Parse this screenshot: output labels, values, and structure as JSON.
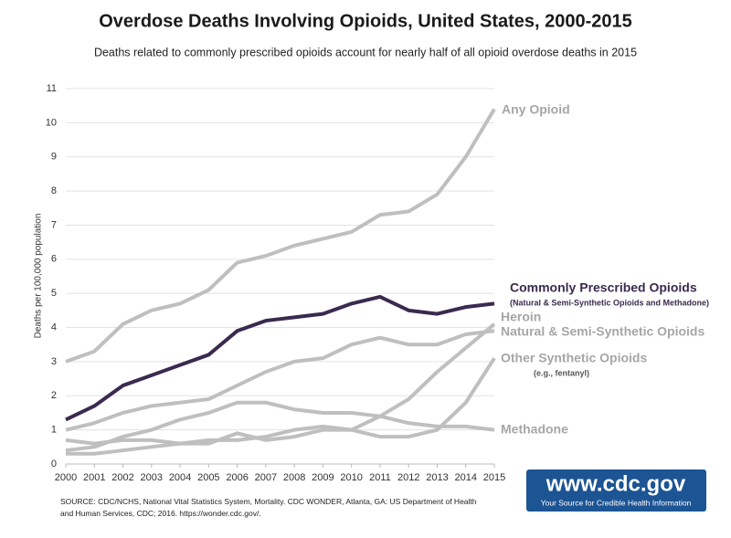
{
  "chart_data": {
    "type": "line",
    "title": "Overdose Deaths Involving Opioids, United States, 2000-2015",
    "subtitle": "Deaths related to commonly prescribed opioids account for nearly half of all opioid overdose deaths in 2015",
    "y_label": "Deaths per 100,000 population",
    "source": "SOURCE: CDC/NCHS, National Vital Statistics System, Mortality. CDC WONDER, Atlanta, GA: US Department of Health and Human Services, CDC; 2016. https://wonder.cdc.gov/.",
    "logo": {
      "title": "www.cdc.gov",
      "tagline": "Your Source for Credible Health Information"
    },
    "x": [
      2000,
      2001,
      2002,
      2003,
      2004,
      2005,
      2006,
      2007,
      2008,
      2009,
      2010,
      2011,
      2012,
      2013,
      2014,
      2015
    ],
    "xlim": [
      2000,
      2015
    ],
    "xticks": [
      2000,
      2001,
      2002,
      2003,
      2004,
      2005,
      2006,
      2007,
      2008,
      2009,
      2010,
      2011,
      2012,
      2013,
      2014,
      2015
    ],
    "ylim": [
      0,
      11
    ],
    "yticks": [
      0,
      1,
      2,
      3,
      4,
      5,
      6,
      7,
      8,
      9,
      10,
      11
    ],
    "grid": true,
    "series": [
      {
        "name": "Any Opioid",
        "color": "#bfbfbf",
        "values": [
          3.0,
          3.3,
          4.1,
          4.5,
          4.7,
          5.1,
          5.9,
          6.1,
          6.4,
          6.6,
          6.8,
          7.3,
          7.4,
          7.9,
          9.0,
          10.4
        ]
      },
      {
        "name": "Commonly Prescribed Opioids",
        "note": "(Natural & Semi-Synthetic Opioids and Methadone)",
        "color": "#3b2a4f",
        "values": [
          1.3,
          1.7,
          2.3,
          2.6,
          2.9,
          3.2,
          3.9,
          4.2,
          4.3,
          4.4,
          4.7,
          4.9,
          4.5,
          4.4,
          4.6,
          4.7
        ]
      },
      {
        "name": "Heroin",
        "color": "#bfbfbf",
        "values": [
          0.7,
          0.6,
          0.7,
          0.7,
          0.6,
          0.7,
          0.7,
          0.8,
          1.0,
          1.1,
          1.0,
          1.4,
          1.9,
          2.7,
          3.4,
          4.1
        ]
      },
      {
        "name": "Natural & Semi-Synthetic Opioids",
        "color": "#bfbfbf",
        "values": [
          1.0,
          1.2,
          1.5,
          1.7,
          1.8,
          1.9,
          2.3,
          2.7,
          3.0,
          3.1,
          3.5,
          3.7,
          3.5,
          3.5,
          3.8,
          3.9
        ]
      },
      {
        "name": "Other Synthetic Opioids",
        "note": "(e.g., fentanyl)",
        "color": "#bfbfbf",
        "values": [
          0.3,
          0.3,
          0.4,
          0.5,
          0.6,
          0.6,
          0.9,
          0.7,
          0.8,
          1.0,
          1.0,
          0.8,
          0.8,
          1.0,
          1.8,
          3.1
        ]
      },
      {
        "name": "Methadone",
        "color": "#bfbfbf",
        "values": [
          0.4,
          0.5,
          0.8,
          1.0,
          1.3,
          1.5,
          1.8,
          1.8,
          1.6,
          1.5,
          1.5,
          1.4,
          1.2,
          1.1,
          1.1,
          1.0
        ]
      }
    ]
  }
}
